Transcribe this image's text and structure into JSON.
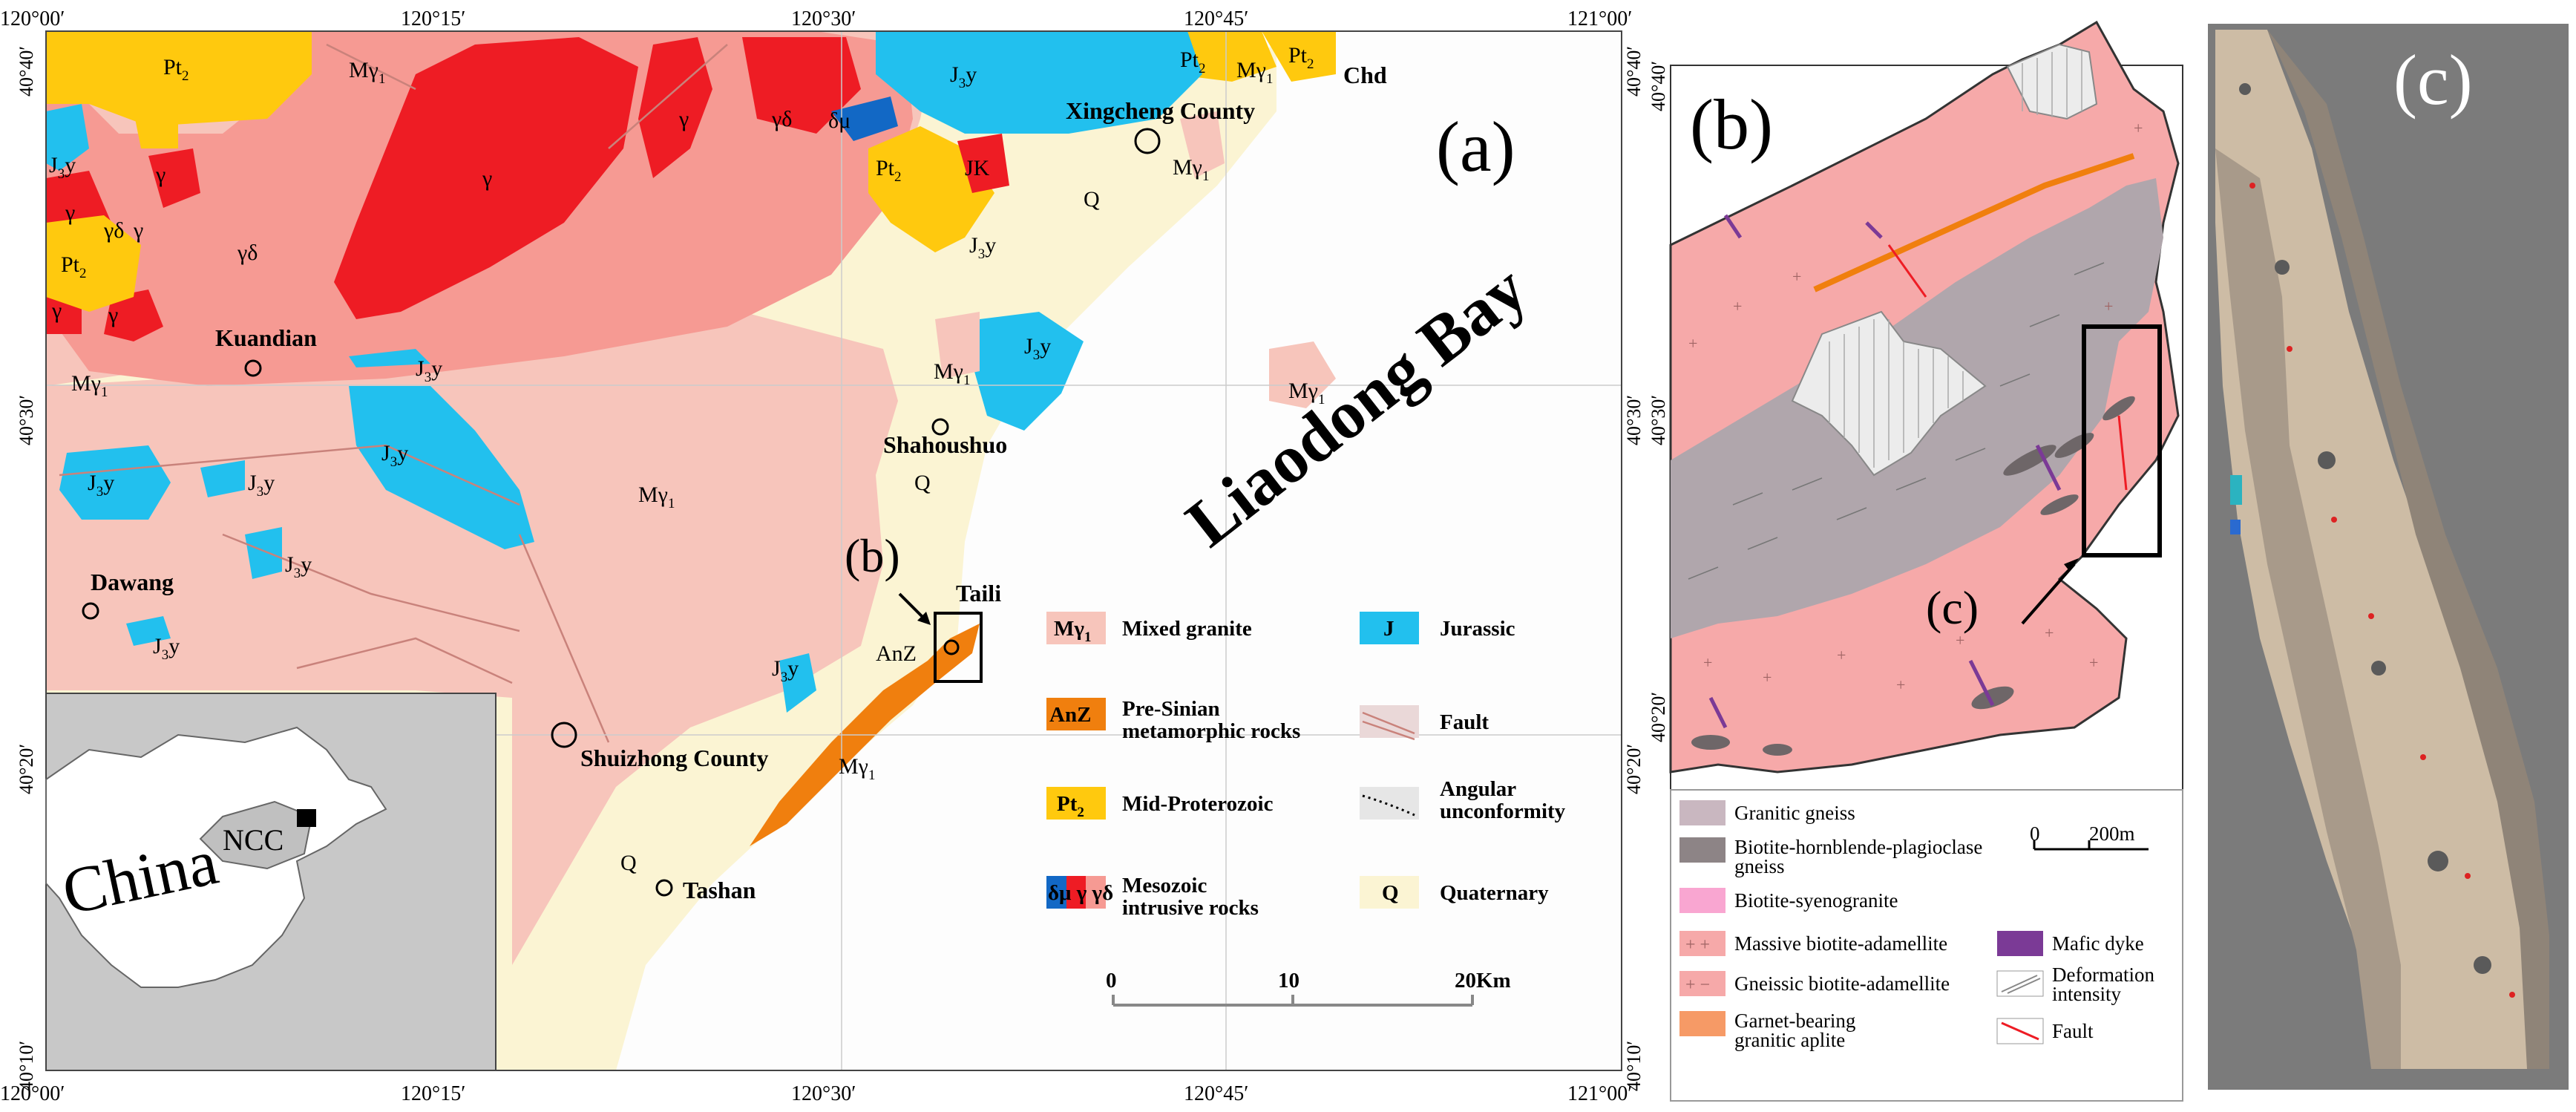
{
  "panel_a": {
    "label": "(a)",
    "top_ticks": [
      "120°00′",
      "120°15′",
      "120°30′",
      "120°45′",
      "121°00′"
    ],
    "bottom_ticks": [
      "120°00′",
      "120°15′",
      "120°30′",
      "120°45′",
      "121°00′"
    ],
    "left_ticks": [
      "40°40′",
      "40°30′",
      "40°20′",
      "40°10′"
    ],
    "right_ticks": [
      "40°40′",
      "40°30′",
      "40°20′",
      "40°10′"
    ],
    "bay": "Liaodong Bay",
    "places": {
      "xingcheng": "Xingcheng County",
      "kuandian": "Kuandian",
      "shahoushuo": "Shahoushuo",
      "dawang": "Dawang",
      "shuizhong": "Shuizhong County",
      "tashan": "Tashan",
      "taili": "Taili",
      "chd": "Chd"
    },
    "units": {
      "pt": "Pt",
      "pt_sub": "2",
      "jy": "J",
      "jy_sub": "3",
      "jy_y": "y",
      "my": "Mγ",
      "my_sub": "1",
      "gamma": "γ",
      "gammadelta": "γδ",
      "deltamu": "δμ",
      "jk": "JK",
      "q": "Q",
      "anz": "AnZ"
    },
    "callout_b": "(b)",
    "legend": [
      {
        "sym": "Mγ",
        "sub": "1",
        "text": "Mixed granite",
        "color": "#f7c5bb"
      },
      {
        "sym": "AnZ",
        "sub": "",
        "text": "Pre-Sinian",
        "text2": "metamorphic rocks",
        "color": "#f07f0e"
      },
      {
        "sym": "Pt",
        "sub": "2",
        "text": "Mid-Proterozoic",
        "color": "#ffc90e"
      },
      {
        "sym": "δμ γ γδ",
        "sub": "",
        "text": "Mesozoic",
        "text2": "intrusive rocks",
        "color": "#ef3a3a"
      },
      {
        "sym": "J",
        "sub": "",
        "text": "Jurassic",
        "color": "#22c0ee"
      },
      {
        "sym": "",
        "sub": "",
        "text": "Fault",
        "color": "#ead8d8"
      },
      {
        "sym": "",
        "sub": "",
        "text": "Angular",
        "text2": "unconformity",
        "color": "#e6e6e6"
      },
      {
        "sym": "Q",
        "sub": "",
        "text": "Quaternary",
        "color": "#fbf4d3"
      }
    ],
    "scale": {
      "ticks": [
        "0",
        "10",
        "20Km"
      ]
    },
    "inset": {
      "country": "China",
      "ncc": "NCC"
    },
    "colors": {
      "quaternary": "#fbf4d3",
      "mixed_granite": "#f7c5bb",
      "granite": "#f69a93",
      "gamma": "#ee1c24",
      "jurassic": "#22c0ee",
      "proterozoic": "#ffc90e",
      "anz": "#f07f0e",
      "deltamu": "#1268c5"
    }
  },
  "panel_b": {
    "label": "(b)",
    "callout_c": "(c)",
    "left_ticks": [
      "40°40′",
      "40°30′",
      "40°20′"
    ],
    "scale": {
      "zero": "0",
      "dist": "200m"
    },
    "legend": [
      {
        "text": "Granitic gneiss",
        "color": "#c9b7c0"
      },
      {
        "text": "Biotite-hornblende-plagioclase",
        "text2": "gneiss",
        "color": "#8d8486"
      },
      {
        "text": "Biotite-syenogranite",
        "color": "#f9a6d1"
      },
      {
        "text": "Massive biotite-adamellite",
        "color": "#f6a9a9"
      },
      {
        "text": "Gneissic biotite-adamellite",
        "color": "#f6a9a9"
      },
      {
        "text": "Garnet-bearing",
        "text2": "granitic aplite",
        "color": "#f69a66"
      },
      {
        "text": "Mafic dyke",
        "color": "#7b3a96"
      },
      {
        "text": "Deformation",
        "text2": "intensity",
        "color": "#ffffff"
      },
      {
        "text": "Fault",
        "color": "#ffffff"
      }
    ],
    "colors": {
      "pink": "#f6a9a9",
      "grey": "#b0a6ac",
      "dark": "#6e6668"
    }
  },
  "panel_c": {
    "label": "(c)",
    "colors": {
      "background": "#7b7b7b",
      "strip": "#cdbca5"
    }
  }
}
